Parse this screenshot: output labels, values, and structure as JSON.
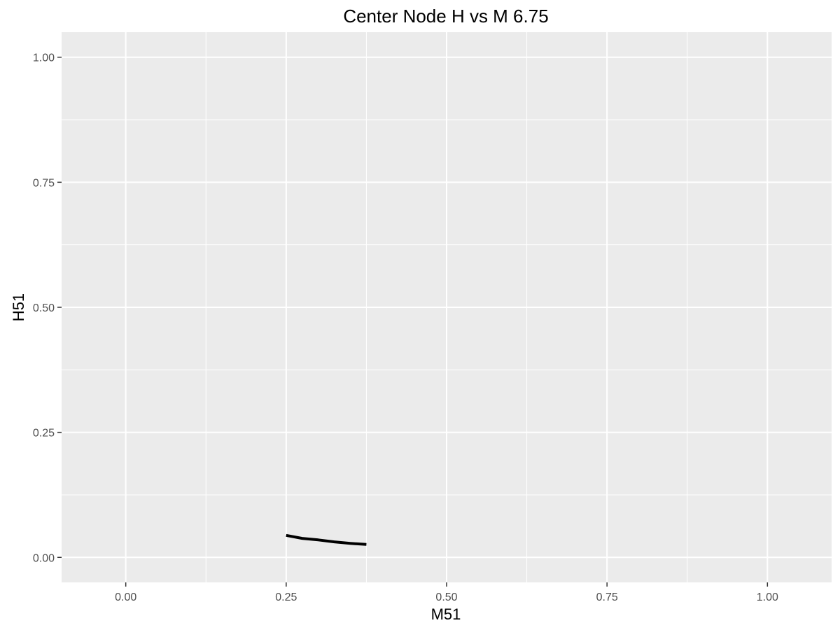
{
  "chart_data": {
    "type": "line",
    "title": "Center Node H vs M 6.75",
    "xlabel": "M51",
    "ylabel": "H51",
    "xlim": [
      -0.1,
      1.1
    ],
    "ylim": [
      -0.05,
      1.05
    ],
    "x_ticks": [
      0.0,
      0.25,
      0.5,
      0.75,
      1.0
    ],
    "x_tick_labels": [
      "0.00",
      "0.25",
      "0.50",
      "0.75",
      "1.00"
    ],
    "y_ticks": [
      0.0,
      0.25,
      0.5,
      0.75,
      1.0
    ],
    "y_tick_labels": [
      "0.00",
      "0.25",
      "0.50",
      "0.75",
      "1.00"
    ],
    "grid": true,
    "background": "#ebebeb",
    "gridline_color": "#ffffff",
    "line_color": "#000000",
    "series": [
      {
        "x": [
          0.25,
          0.275,
          0.3,
          0.325,
          0.35,
          0.375
        ],
        "y": [
          0.044,
          0.038,
          0.035,
          0.031,
          0.028,
          0.026
        ]
      }
    ]
  }
}
